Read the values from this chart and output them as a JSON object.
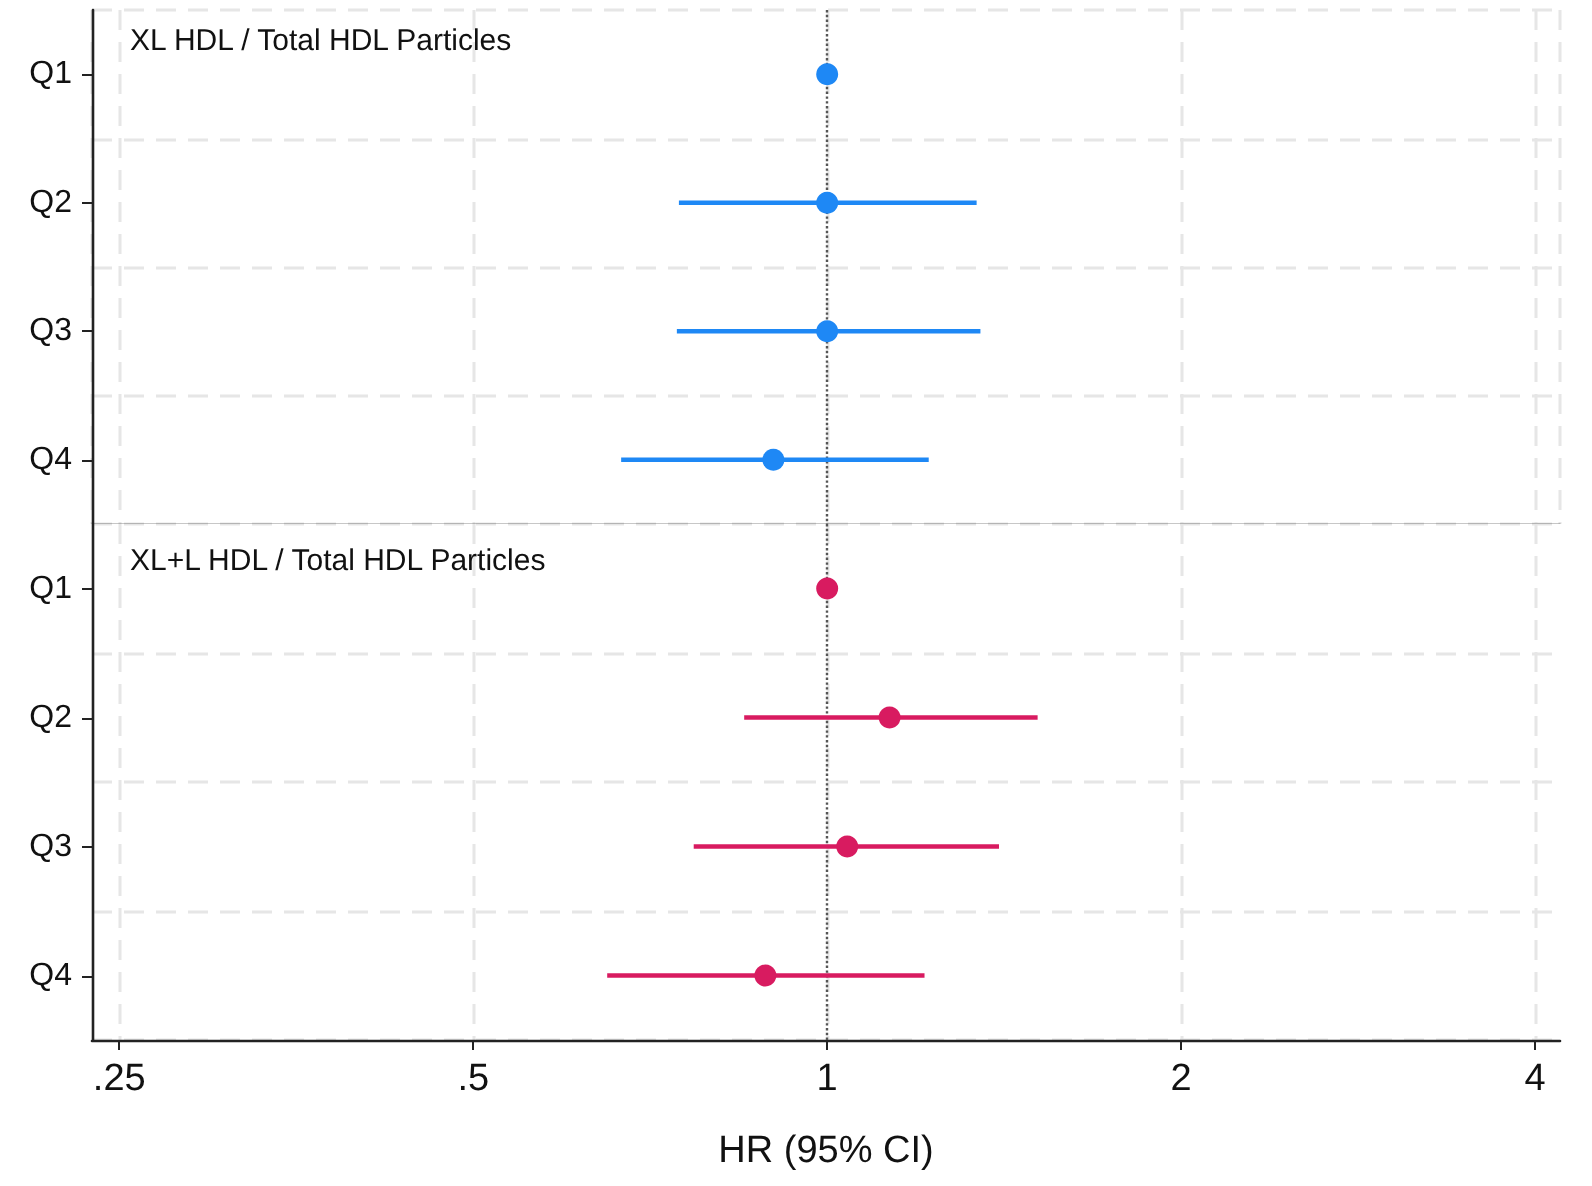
{
  "chart_data": [
    {
      "type": "scatter",
      "title": "XL HDL / Total HDL Particles",
      "orientation": "horizontal",
      "categories": [
        "Q1",
        "Q2",
        "Q3",
        "Q4"
      ],
      "values": [
        1,
        1,
        1,
        0.9
      ],
      "errors": [
        null,
        [
          0.748,
          1.34
        ],
        [
          0.745,
          1.35
        ],
        [
          0.668,
          1.22
        ]
      ],
      "color": "#1e88f5",
      "log": "x",
      "xlim": [
        0.237,
        4.2
      ],
      "grid": true,
      "marker": "circle",
      "tick_labels": "y",
      "ref_lines": [
        {
          "axis": "x",
          "value": 1,
          "color": "#555555",
          "line_style": "dotted"
        }
      ]
    },
    {
      "type": "scatter",
      "title": "XL+L HDL / Total HDL Particles",
      "xlabel": "HR (95% CI)",
      "orientation": "horizontal",
      "categories": [
        "Q1",
        "Q2",
        "Q3",
        "Q4"
      ],
      "values": [
        1,
        1.13,
        1.04,
        0.886
      ],
      "errors": [
        null,
        [
          0.85,
          1.51
        ],
        [
          0.77,
          1.4
        ],
        [
          0.65,
          1.21
        ]
      ],
      "color": "#d81b60",
      "log": "x",
      "xlim": [
        0.237,
        4.2
      ],
      "xticks": [
        {
          "value": 0.25,
          "label": ".25"
        },
        {
          "value": 0.5,
          "label": ".5"
        },
        1,
        2,
        4
      ],
      "grid": true,
      "marker": "circle",
      "ref_lines": [
        {
          "axis": "x",
          "value": 1,
          "color": "#555555",
          "line_style": "dotted"
        }
      ]
    }
  ]
}
